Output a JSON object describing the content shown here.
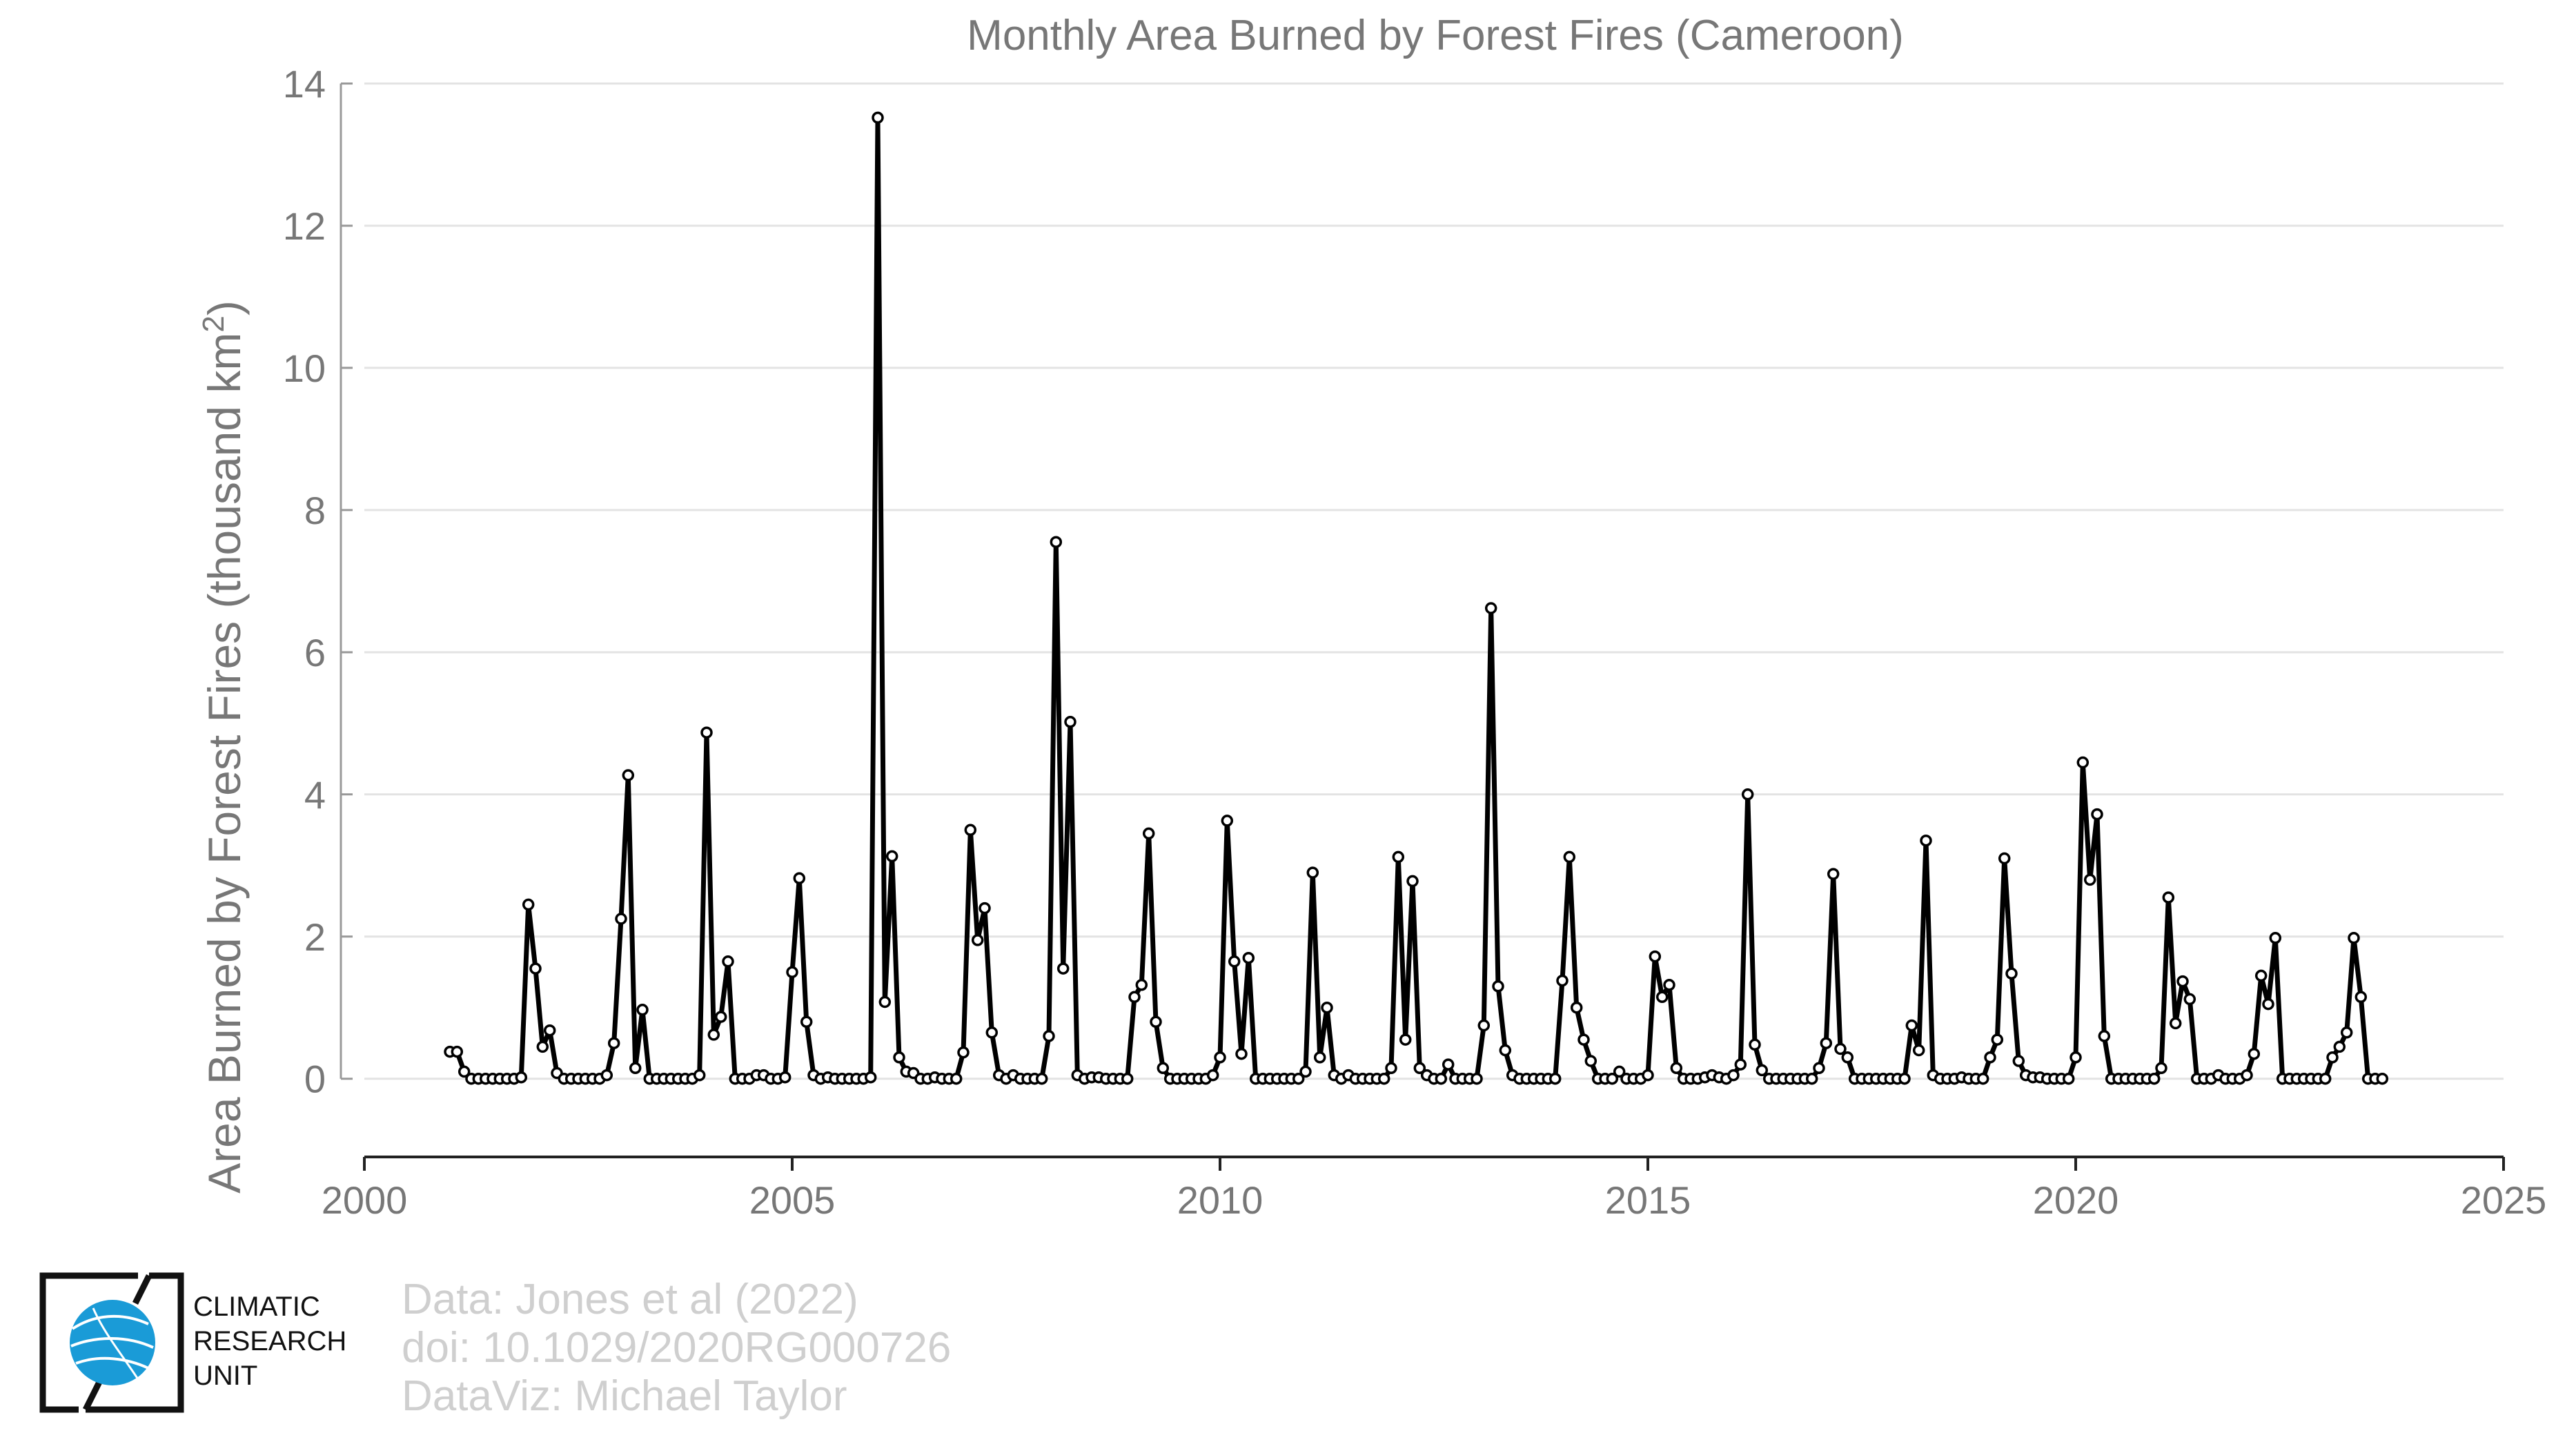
{
  "chart_data": {
    "type": "line",
    "title": "Monthly Area Burned by Forest Fires (Cameroon)",
    "ylabel_main": "Area Burned by Forest Fires (thousand km",
    "ylabel_sup": "2",
    "ylabel_close": ")",
    "xlim": [
      2000,
      2025
    ],
    "ylim": [
      -1.1,
      14
    ],
    "xticks": [
      2000,
      2005,
      2010,
      2015,
      2020,
      2025
    ],
    "xtick_labels": [
      "2000",
      "2005",
      "2010",
      "2015",
      "2020",
      "2025"
    ],
    "yticks": [
      0,
      2,
      4,
      6,
      8,
      10,
      12,
      14
    ],
    "ytick_labels": [
      "0",
      "2",
      "4",
      "6",
      "8",
      "10",
      "12",
      "14"
    ],
    "grid": "horizontal",
    "series": [
      {
        "start_year": 2001,
        "start_month": 1,
        "values": [
          0.38,
          0.38,
          0.1,
          0,
          0,
          0,
          0,
          0,
          0,
          0,
          0.02,
          2.45,
          1.55,
          0.45,
          0.68,
          0.08,
          0,
          0,
          0,
          0,
          0,
          0,
          0.05,
          0.5,
          2.25,
          4.27,
          0.15,
          0.97,
          0,
          0,
          0,
          0,
          0,
          0,
          0,
          0.05,
          4.87,
          0.62,
          0.87,
          1.65,
          0,
          0,
          0,
          0.05,
          0.05,
          0,
          0,
          0.02,
          1.5,
          2.82,
          0.8,
          0.05,
          0,
          0.02,
          0,
          0,
          0,
          0,
          0,
          0.02,
          13.52,
          1.08,
          3.13,
          0.3,
          0.1,
          0.08,
          0,
          0,
          0.02,
          0,
          0,
          0,
          0.37,
          3.5,
          1.95,
          2.4,
          0.65,
          0.05,
          0,
          0.05,
          0,
          0,
          0,
          0,
          0.6,
          7.55,
          1.55,
          5.02,
          0.05,
          0,
          0.02,
          0.02,
          0,
          0,
          0,
          0,
          1.15,
          1.32,
          3.45,
          0.8,
          0.15,
          0,
          0,
          0,
          0,
          0,
          0,
          0.05,
          0.3,
          3.63,
          1.65,
          0.35,
          1.7,
          0,
          0,
          0,
          0,
          0,
          0,
          0,
          0.1,
          2.9,
          0.3,
          1,
          0.05,
          0,
          0.05,
          0,
          0,
          0,
          0,
          0,
          0.15,
          3.12,
          0.55,
          2.78,
          0.15,
          0.05,
          0,
          0,
          0.2,
          0,
          0,
          0,
          0,
          0.75,
          6.62,
          1.3,
          0.4,
          0.05,
          0,
          0,
          0,
          0,
          0,
          0,
          1.38,
          3.12,
          1,
          0.55,
          0.25,
          0,
          0,
          0,
          0.1,
          0,
          0,
          0,
          0.05,
          1.72,
          1.15,
          1.32,
          0.15,
          0,
          0,
          0,
          0.02,
          0.05,
          0.02,
          0,
          0.05,
          0.2,
          4,
          0.48,
          0.12,
          0,
          0,
          0,
          0,
          0,
          0,
          0,
          0.15,
          0.5,
          2.88,
          0.42,
          0.3,
          0,
          0,
          0,
          0,
          0,
          0,
          0,
          0,
          0.75,
          0.4,
          3.35,
          0.05,
          0,
          0,
          0,
          0.02,
          0,
          0,
          0,
          0.3,
          0.55,
          3.1,
          1.48,
          0.25,
          0.05,
          0.02,
          0.02,
          0,
          0,
          0,
          0,
          0.3,
          4.45,
          2.8,
          3.72,
          0.6,
          0,
          0,
          0,
          0,
          0,
          0,
          0,
          0.15,
          2.55,
          0.78,
          1.37,
          1.12,
          0,
          0,
          0,
          0.05,
          0,
          0,
          0,
          0.05,
          0.35,
          1.45,
          1.05,
          1.98,
          0,
          0,
          0,
          0,
          0,
          0,
          0,
          0.3,
          0.45,
          0.65,
          1.98,
          1.15,
          0,
          0,
          0
        ]
      }
    ]
  },
  "logo": {
    "line1": "CLIMATIC",
    "line2": "RESEARCH",
    "line3": "UNIT"
  },
  "credits": {
    "line1": "Data: Jones et al (2022)",
    "line2": "doi: 10.1029/2020RG000726",
    "line3": "DataViz: Michael Taylor"
  }
}
